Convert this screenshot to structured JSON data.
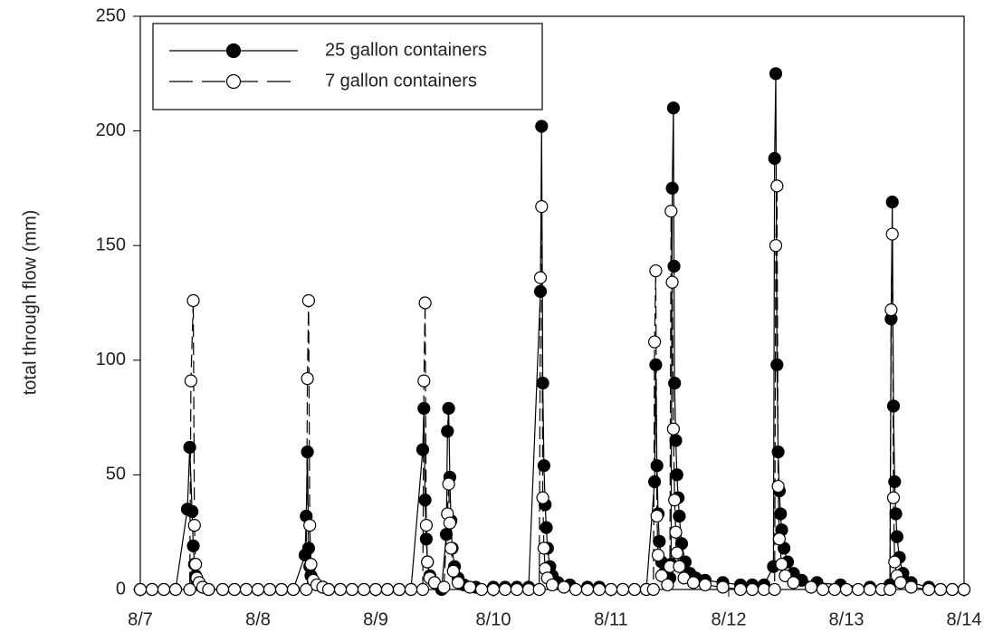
{
  "chart_data": {
    "type": "line",
    "ylabel": "total through flow (mm)",
    "xlim": [
      0,
      7
    ],
    "ylim": [
      0,
      250
    ],
    "xticks": [
      {
        "value": 0,
        "label": "8/7"
      },
      {
        "value": 1,
        "label": "8/8"
      },
      {
        "value": 2,
        "label": "8/9"
      },
      {
        "value": 3,
        "label": "8/10"
      },
      {
        "value": 4,
        "label": "8/11"
      },
      {
        "value": 5,
        "label": "8/12"
      },
      {
        "value": 6,
        "label": "8/13"
      },
      {
        "value": 7,
        "label": "8/14"
      }
    ],
    "yticks": [
      0,
      50,
      100,
      150,
      200,
      250
    ],
    "legend": "upper left",
    "series": [
      {
        "name": "25 gallon containers",
        "color": "#000000",
        "marker_face": "#000000",
        "line_style": "solid",
        "x": [
          0,
          0.1,
          0.2,
          0.3,
          0.4,
          0.42,
          0.44,
          0.45,
          0.46,
          0.47,
          0.48,
          0.5,
          0.53,
          0.58,
          0.7,
          0.8,
          0.9,
          1.0,
          1.1,
          1.2,
          1.3,
          1.4,
          1.41,
          1.42,
          1.43,
          1.44,
          1.45,
          1.47,
          1.5,
          1.55,
          1.6,
          1.7,
          1.8,
          1.9,
          2.0,
          2.1,
          2.2,
          2.3,
          2.4,
          2.41,
          2.42,
          2.43,
          2.44,
          2.46,
          2.5,
          2.56,
          2.6,
          2.61,
          2.62,
          2.63,
          2.64,
          2.65,
          2.67,
          2.7,
          2.75,
          2.85,
          3.0,
          3.1,
          3.2,
          3.3,
          3.4,
          3.41,
          3.42,
          3.43,
          3.44,
          3.45,
          3.46,
          3.48,
          3.5,
          3.55,
          3.65,
          3.8,
          3.9,
          4.0,
          4.1,
          4.2,
          4.3,
          4.37,
          4.38,
          4.39,
          4.4,
          4.41,
          4.43,
          4.45,
          4.48,
          4.5,
          4.51,
          4.52,
          4.53,
          4.535,
          4.54,
          4.55,
          4.56,
          4.57,
          4.58,
          4.6,
          4.63,
          4.67,
          4.72,
          4.8,
          4.95,
          5.1,
          5.2,
          5.3,
          5.38,
          5.39,
          5.4,
          5.41,
          5.42,
          5.43,
          5.44,
          5.45,
          5.47,
          5.5,
          5.55,
          5.62,
          5.75,
          5.95,
          6.2,
          6.3,
          6.37,
          6.38,
          6.39,
          6.4,
          6.41,
          6.42,
          6.43,
          6.45,
          6.48,
          6.55,
          6.7,
          6.8,
          6.9,
          7.0
        ],
        "values": [
          0,
          0,
          0,
          0,
          35,
          62,
          34,
          19,
          11,
          6,
          4,
          2,
          1,
          0,
          0,
          0,
          0,
          0,
          0,
          0,
          0,
          15,
          32,
          60,
          18,
          10,
          6,
          3,
          2,
          1,
          0,
          0,
          0,
          0,
          0,
          0,
          0,
          0,
          61,
          79,
          39,
          22,
          12,
          6,
          3,
          0,
          24,
          69,
          79,
          49,
          30,
          18,
          10,
          5,
          2,
          1,
          1,
          1,
          1,
          1,
          130,
          202,
          90,
          54,
          37,
          27,
          18,
          10,
          6,
          3,
          2,
          1,
          1,
          0,
          0,
          0,
          0,
          47,
          98,
          54,
          33,
          21,
          12,
          7,
          4,
          5,
          11,
          175,
          210,
          141,
          90,
          65,
          50,
          40,
          32,
          20,
          12,
          7,
          5,
          4,
          3,
          2,
          2,
          2,
          10,
          188,
          225,
          98,
          60,
          43,
          33,
          26,
          18,
          12,
          7,
          4,
          3,
          2,
          1,
          0,
          2,
          118,
          169,
          80,
          47,
          33,
          23,
          14,
          7,
          3,
          1,
          0,
          0,
          0
        ]
      },
      {
        "name": "7 gallon containers",
        "color": "#000000",
        "marker_face": "#ffffff",
        "line_style": "dashed",
        "x": [
          0,
          0.1,
          0.2,
          0.3,
          0.42,
          0.43,
          0.45,
          0.46,
          0.47,
          0.48,
          0.5,
          0.53,
          0.58,
          0.7,
          0.8,
          0.9,
          1.0,
          1.1,
          1.2,
          1.3,
          1.41,
          1.42,
          1.43,
          1.44,
          1.45,
          1.47,
          1.5,
          1.55,
          1.6,
          1.7,
          1.8,
          1.9,
          2.0,
          2.1,
          2.2,
          2.3,
          2.4,
          2.41,
          2.42,
          2.43,
          2.44,
          2.46,
          2.5,
          2.58,
          2.61,
          2.62,
          2.63,
          2.64,
          2.66,
          2.7,
          2.8,
          2.9,
          3.0,
          3.1,
          3.2,
          3.3,
          3.39,
          3.4,
          3.41,
          3.42,
          3.43,
          3.44,
          3.46,
          3.5,
          3.6,
          3.7,
          3.8,
          3.9,
          4.0,
          4.1,
          4.2,
          4.3,
          4.36,
          4.37,
          4.38,
          4.39,
          4.4,
          4.43,
          4.48,
          4.5,
          4.51,
          4.52,
          4.53,
          4.54,
          4.55,
          4.56,
          4.58,
          4.62,
          4.7,
          4.8,
          4.95,
          5.1,
          5.2,
          5.3,
          5.39,
          5.4,
          5.41,
          5.42,
          5.43,
          5.45,
          5.48,
          5.55,
          5.7,
          5.8,
          5.9,
          6.0,
          6.1,
          6.2,
          6.3,
          6.37,
          6.38,
          6.39,
          6.4,
          6.41,
          6.43,
          6.46,
          6.55,
          6.7,
          6.8,
          6.9,
          7.0
        ],
        "values": [
          0,
          0,
          0,
          0,
          0,
          91,
          126,
          28,
          11,
          5,
          3,
          1,
          0,
          0,
          0,
          0,
          0,
          0,
          0,
          0,
          0,
          92,
          126,
          28,
          11,
          4,
          2,
          1,
          0,
          0,
          0,
          0,
          0,
          0,
          0,
          0,
          0,
          91,
          125,
          28,
          12,
          5,
          3,
          1,
          33,
          46,
          29,
          18,
          8,
          3,
          1,
          0,
          0,
          0,
          0,
          0,
          0,
          136,
          167,
          40,
          18,
          9,
          5,
          2,
          1,
          0,
          0,
          0,
          0,
          0,
          0,
          0,
          0,
          108,
          139,
          32,
          15,
          6,
          2,
          10,
          165,
          134,
          70,
          39,
          25,
          16,
          10,
          5,
          3,
          2,
          1,
          0,
          0,
          0,
          0,
          150,
          176,
          45,
          22,
          11,
          6,
          3,
          1,
          0,
          0,
          0,
          0,
          0,
          0,
          0,
          122,
          155,
          40,
          12,
          6,
          3,
          1,
          0,
          0,
          0,
          0
        ]
      }
    ]
  }
}
